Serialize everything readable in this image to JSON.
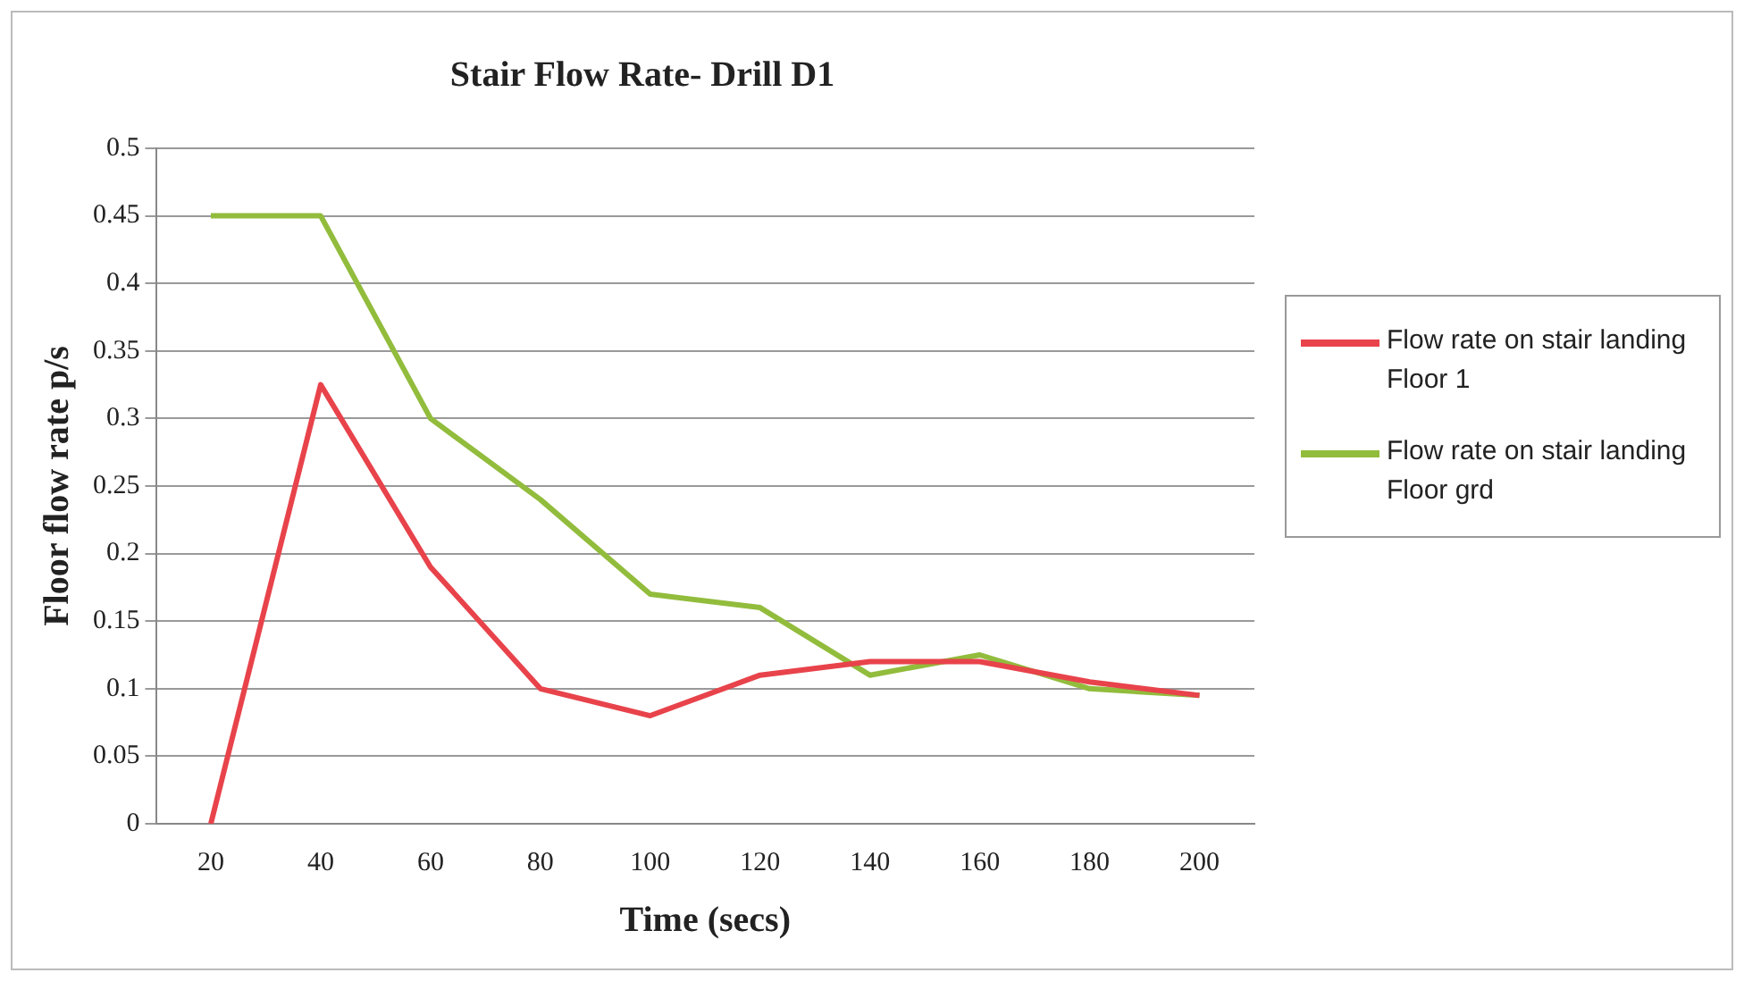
{
  "chart_data": {
    "type": "line",
    "title": "Stair Flow Rate- Drill D1",
    "xlabel": "Time (secs)",
    "ylabel": "Floor flow rate p/s",
    "categories": [
      "20",
      "40",
      "60",
      "80",
      "100",
      "120",
      "140",
      "160",
      "180",
      "200"
    ],
    "series": [
      {
        "name": "Flow rate on stair landing Floor 1",
        "color": "#e8434b",
        "values": [
          0,
          0.325,
          0.19,
          0.1,
          0.08,
          0.11,
          0.12,
          0.12,
          0.105,
          0.095
        ]
      },
      {
        "name": "Flow rate on stair landing Floor grd",
        "color": "#92bc3c",
        "values": [
          0.45,
          0.45,
          0.3,
          0.24,
          0.17,
          0.16,
          0.11,
          0.125,
          0.1,
          0.095
        ]
      }
    ],
    "ylim": [
      0,
      0.5
    ],
    "yticks": [
      0,
      0.05,
      0.1,
      0.15,
      0.2,
      0.25,
      0.3,
      0.35,
      0.4,
      0.45,
      0.5
    ],
    "grid": "y",
    "legend": "right",
    "marker": "none",
    "line_style": "solid"
  }
}
